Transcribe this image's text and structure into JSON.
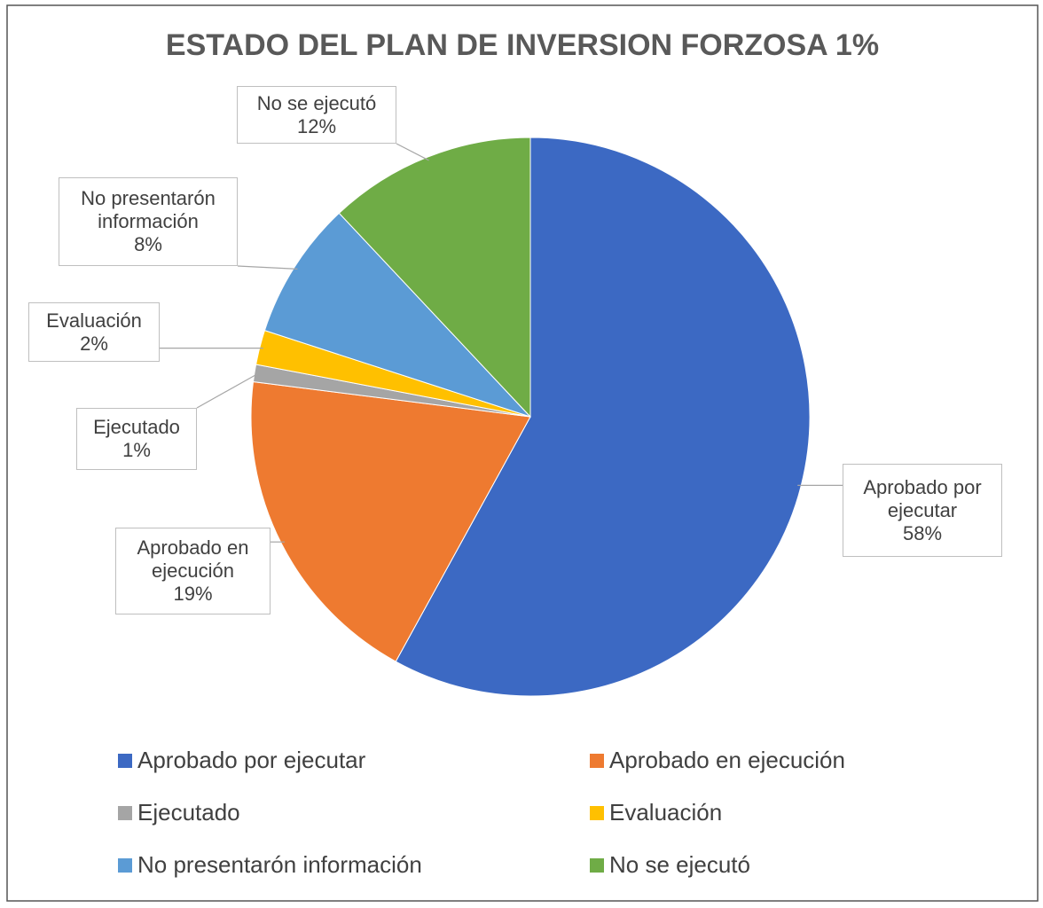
{
  "chart_data": {
    "type": "pie",
    "title": "ESTADO DEL PLAN DE INVERSION FORZOSA 1%",
    "categories": [
      "Aprobado por ejecutar",
      "Aprobado en ejecución",
      "Ejecutado",
      "Evaluación",
      "No presentarón información",
      "No se ejecutó"
    ],
    "values": [
      58,
      19,
      1,
      2,
      8,
      12
    ],
    "value_labels": [
      "58%",
      "19%",
      "1%",
      "2%",
      "8%",
      "12%"
    ],
    "colors": [
      "#3c69c3",
      "#ee7a30",
      "#a5a5a5",
      "#ffc000",
      "#5b9bd5",
      "#6fac46"
    ],
    "legend": "bottom"
  }
}
